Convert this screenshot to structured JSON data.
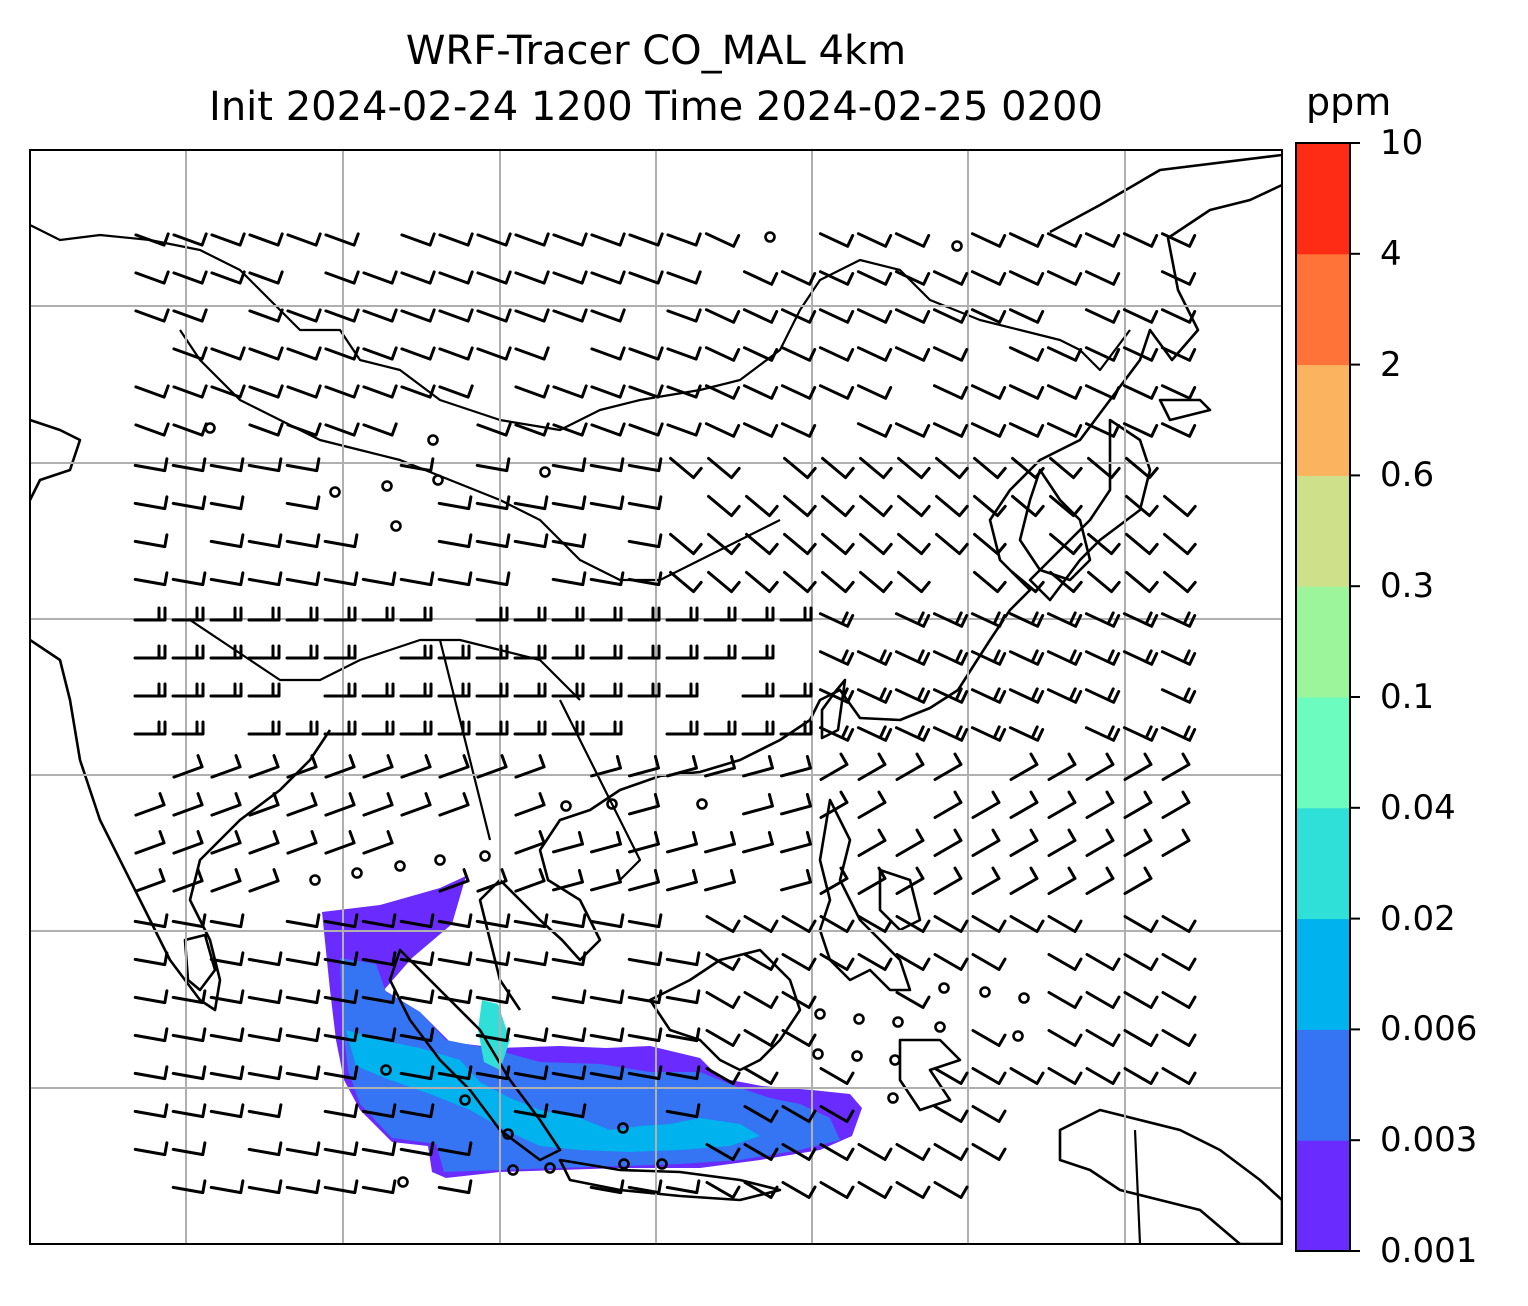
{
  "title": {
    "line1": "WRF-Tracer CO_MAL 4km",
    "line2": "Init 2024-02-24 1200 Time 2024-02-25 0200"
  },
  "colorbar": {
    "unit": "ppm",
    "levels": [
      "0.001",
      "0.003",
      "0.006",
      "0.02",
      "0.04",
      "0.1",
      "0.3",
      "0.6",
      "2",
      "4",
      "10"
    ],
    "colors": [
      "#6a2bff",
      "#3574f2",
      "#00b3ee",
      "#2ee0d8",
      "#6cfcc0",
      "#9cf59b",
      "#cfe08a",
      "#fcb35f",
      "#ff7238",
      "#fe2b15"
    ]
  },
  "map": {
    "grid": true,
    "land_outline_color": "#000000",
    "gridline_color": "#b0b0b0",
    "plume_colors": {
      "low": "#6a2bff",
      "mid": "#3574f2",
      "high": "#00b3ee"
    }
  }
}
